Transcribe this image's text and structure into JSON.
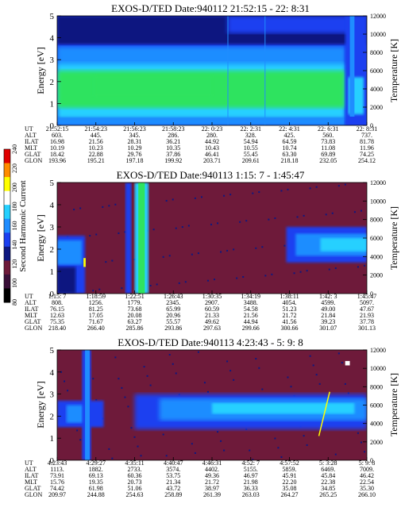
{
  "colors": {
    "dark": "#3a0f38",
    "maroon": "#6e1a3a",
    "navy": "#0d1880",
    "blue": "#1a3ff0",
    "azure": "#1f8dff",
    "cyan": "#25d0ff",
    "green": "#2fe35f",
    "orange": "#ff8c00",
    "yellow": "#ffff00",
    "white": "#ffffff",
    "red": "#e00000"
  },
  "colorbar": {
    "title": "Second Harmonic Current",
    "ticks": [
      "80",
      "100",
      "120",
      "140",
      "160",
      "180",
      "200",
      "220",
      "240"
    ],
    "range": [
      80,
      240
    ]
  },
  "chart_data": [
    {
      "type": "heatmap",
      "title": "EXOS-D/TED   Date:940112  21:52:15 - 22: 8:31",
      "ylabel": "Energy [eV]",
      "y2label": "Temperature [K]",
      "ylim": [
        0,
        5
      ],
      "yticks": [
        "0",
        "1",
        "2",
        "3",
        "4",
        "5"
      ],
      "y2lim": [
        0,
        12000
      ],
      "y2ticks": [
        "0",
        "2000",
        "4000",
        "6000",
        "8000",
        "10000",
        "12000"
      ],
      "ephemeris_labels": [
        "UT",
        "ALT",
        "ILAT",
        "MLT",
        "GLAT",
        "GLON"
      ],
      "ephemeris_columns": [
        [
          "21:52:15",
          "603.",
          "16.98",
          "10.19",
          "18.42",
          "193.96"
        ],
        [
          "21:54:23",
          "445.",
          "21.56",
          "10.23",
          "22.88",
          "195.21"
        ],
        [
          "21:56:23",
          "345.",
          "28.31",
          "10.29",
          "29.76",
          "197.18"
        ],
        [
          "21:58:23",
          "286.",
          "36.21",
          "10.35",
          "37.86",
          "199.92"
        ],
        [
          "22: 0:23",
          "280.",
          "44.92",
          "10.43",
          "46.41",
          "203.71"
        ],
        [
          "22: 2:31",
          "328.",
          "54.94",
          "10.55",
          "55.45",
          "209.61"
        ],
        [
          "22: 4:31",
          "425.",
          "64.59",
          "10.74",
          "63.30",
          "218.18"
        ],
        [
          "22: 6:31",
          "560.",
          "73.83",
          "11.08",
          "69.89",
          "232.05"
        ],
        [
          "22: 8:31",
          "737.",
          "81.78",
          "11.96",
          "74.25",
          "254.12"
        ]
      ]
    },
    {
      "type": "heatmap",
      "title": "EXOS-D/TED   Date:940113   1:15: 7 - 1:45:47",
      "ylabel": "Energy [eV]",
      "y2label": "Temperature [K]",
      "ylim": [
        0,
        5
      ],
      "yticks": [
        "0",
        "1",
        "2",
        "3",
        "4",
        "5"
      ],
      "y2lim": [
        0,
        12000
      ],
      "y2ticks": [
        "0",
        "2000",
        "4000",
        "6000",
        "8000",
        "10000",
        "12000"
      ],
      "ephemeris_labels": [
        "UT",
        "ALT",
        "ILAT",
        "MLT",
        "GLAT",
        "GLON"
      ],
      "ephemeris_columns": [
        [
          "1:15: 7",
          "808.",
          "76.15",
          "12.63",
          "75.35",
          "218.40"
        ],
        [
          "1:18:59",
          "1256.",
          "81.25",
          "17.05",
          "71.67",
          "266.40"
        ],
        [
          "1:22:51",
          "1779.",
          "73.68",
          "20.08",
          "63.27",
          "285.86"
        ],
        [
          "1:26:43",
          "2345.",
          "65.99",
          "20.96",
          "55.57",
          "293.86"
        ],
        [
          "1:30:35",
          "2907.",
          "60.59",
          "21.33",
          "49.62",
          "297.63"
        ],
        [
          "1:34:19",
          "3488.",
          "54.58",
          "21.56",
          "44.94",
          "299.66"
        ],
        [
          "1:38:11",
          "4054.",
          "51.23",
          "21.72",
          "41.56",
          "300.66"
        ],
        [
          "1:42: 3",
          "4599.",
          "49.00",
          "21.84",
          "39.23",
          "301.07"
        ],
        [
          "1:45:47",
          "5097.",
          "47.67",
          "21.93",
          "37.78",
          "301.13"
        ]
      ]
    },
    {
      "type": "heatmap",
      "title": "EXOS-D/TED   Date:940113  4:23:43 - 5: 9: 8",
      "ylabel": "Energy [eV]",
      "y2label": "Temperature [K]",
      "ylim": [
        0,
        5
      ],
      "yticks": [
        "0",
        "1",
        "2",
        "3",
        "4",
        "5"
      ],
      "y2lim": [
        0,
        12000
      ],
      "y2ticks": [
        "0",
        "2000",
        "4000",
        "6000",
        "8000",
        "10000",
        "12000"
      ],
      "ephemeris_labels": [
        "UT",
        "ALT",
        "ILAT",
        "MLT",
        "GLAT",
        "GLON"
      ],
      "ephemeris_columns": [
        [
          "4:23:43",
          "1113.",
          "73.91",
          "15.76",
          "74.42",
          "209.97"
        ],
        [
          "4:29:27",
          "1882.",
          "69.13",
          "19.35",
          "61.98",
          "244.88"
        ],
        [
          "4:35:11",
          "2733.",
          "60.36",
          "20.73",
          "51.06",
          "254.63"
        ],
        [
          "4:40:47",
          "3574.",
          "53.75",
          "21.34",
          "43.72",
          "258.89"
        ],
        [
          "4:46:31",
          "4402.",
          "49.36",
          "21.72",
          "38.97",
          "261.39"
        ],
        [
          "4:52: 7",
          "5155.",
          "46.97",
          "21.98",
          "36.33",
          "263.03"
        ],
        [
          "4:57:52",
          "5859.",
          "45.91",
          "22.20",
          "35.08",
          "264.27"
        ],
        [
          "5: 3:28",
          "6469.",
          "45.84",
          "22.38",
          "34.85",
          "265.25"
        ],
        [
          "5: 9: 8",
          "7009.",
          "46.42",
          "22.54",
          "35.30",
          "266.10"
        ]
      ]
    }
  ]
}
